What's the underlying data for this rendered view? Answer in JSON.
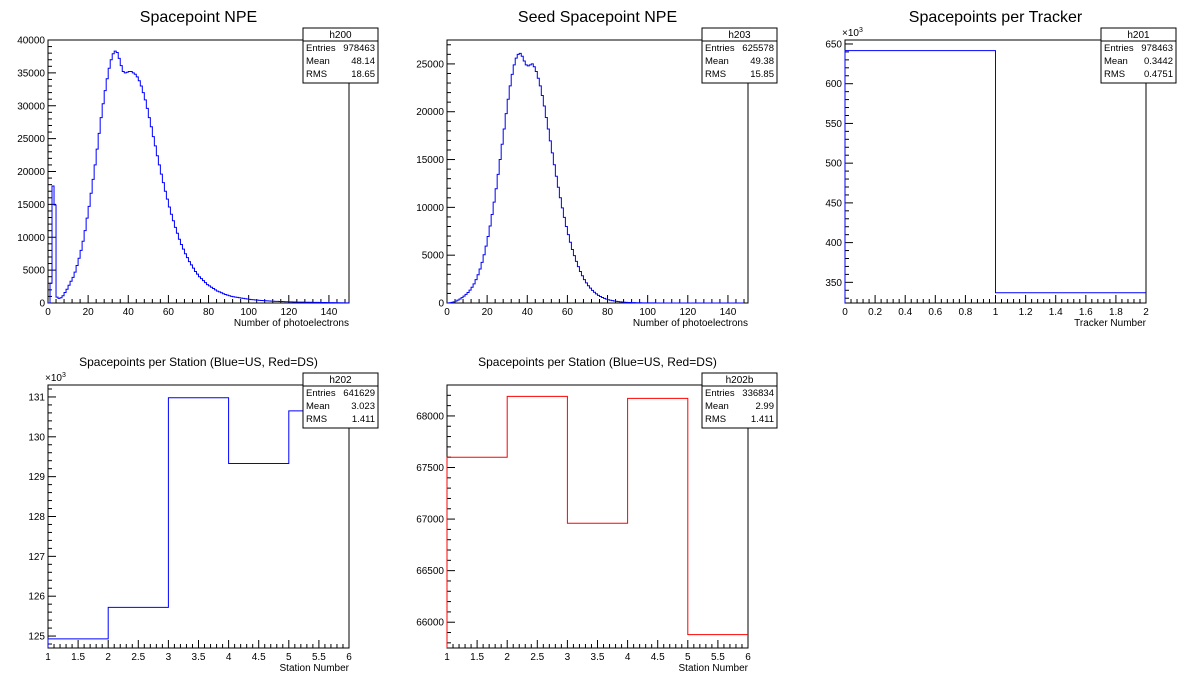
{
  "chart_data": [
    {
      "id": "h200",
      "type": "histogram",
      "title": "Spacepoint NPE",
      "xlabel": "Number of photoelectrons",
      "ylabel": "",
      "xlim": [
        0,
        150
      ],
      "ylim": [
        0,
        40000
      ],
      "xticks": [
        "0",
        "20",
        "40",
        "60",
        "80",
        "100",
        "120",
        "140"
      ],
      "yticks": [
        "0",
        "5000",
        "10000",
        "15000",
        "20000",
        "25000",
        "30000",
        "35000",
        "40000"
      ],
      "yexp": "",
      "color": "#0000ff",
      "bin_width": 1,
      "values": [
        0,
        3000,
        17800,
        14900,
        900,
        700,
        800,
        1100,
        1600,
        2100,
        2700,
        3300,
        3900,
        4700,
        5700,
        6800,
        8000,
        9400,
        11000,
        12900,
        14700,
        16700,
        18800,
        21000,
        23400,
        25800,
        28200,
        30300,
        32300,
        34100,
        35700,
        37000,
        37900,
        38300,
        38100,
        37200,
        36100,
        35200,
        35000,
        35100,
        35200,
        35200,
        35000,
        34800,
        34400,
        33800,
        33000,
        32000,
        30900,
        29600,
        28200,
        26800,
        25300,
        23900,
        22400,
        21000,
        19600,
        18300,
        17000,
        15800,
        14600,
        13500,
        12500,
        11500,
        10600,
        9700,
        8900,
        8200,
        7500,
        6900,
        6300,
        5800,
        5300,
        4800,
        4400,
        4000,
        3700,
        3400,
        3100,
        2800,
        2600,
        2400,
        2200,
        2000,
        1800,
        1700,
        1550,
        1400,
        1300,
        1200,
        1100,
        1000,
        950,
        900,
        850,
        800,
        750,
        700,
        650,
        600,
        560,
        520,
        490,
        460,
        430,
        400,
        380,
        360,
        340,
        320,
        300,
        280,
        260,
        250,
        240,
        230,
        220,
        210,
        200,
        190,
        180,
        170,
        160,
        150,
        140,
        135,
        130,
        125,
        120,
        115,
        110,
        105,
        100,
        95,
        90,
        85,
        80,
        75,
        70,
        65,
        60,
        55,
        50,
        45,
        40,
        35,
        30,
        28,
        26,
        24
      ],
      "stats": {
        "name": "h200",
        "entries": "978463",
        "mean": "48.14",
        "rms": "18.65"
      }
    },
    {
      "id": "h203",
      "type": "histogram",
      "title": "Seed Spacepoint NPE",
      "xlabel": "Number of photoelectrons",
      "ylabel": "",
      "xlim": [
        0,
        150
      ],
      "ylim": [
        0,
        27500
      ],
      "xticks": [
        "0",
        "20",
        "40",
        "60",
        "80",
        "100",
        "120",
        "140"
      ],
      "yticks": [
        "0",
        "5000",
        "10000",
        "15000",
        "20000",
        "25000"
      ],
      "yexp": "",
      "color": "#0000ff",
      "bin_width": 1,
      "values": [
        0,
        20,
        60,
        120,
        200,
        300,
        420,
        560,
        720,
        900,
        1100,
        1350,
        1650,
        2000,
        2450,
        2950,
        3550,
        4250,
        5050,
        5950,
        6950,
        8050,
        9250,
        10550,
        11950,
        13450,
        15000,
        16600,
        18200,
        19800,
        21300,
        22700,
        23900,
        24900,
        25600,
        26000,
        26100,
        25800,
        25300,
        24900,
        24800,
        24900,
        25000,
        24700,
        24200,
        23500,
        22700,
        21700,
        20600,
        19400,
        18200,
        16950,
        15700,
        14450,
        13250,
        12100,
        11000,
        9950,
        8950,
        8000,
        7150,
        6350,
        5600,
        4950,
        4350,
        3800,
        3300,
        2850,
        2450,
        2100,
        1800,
        1550,
        1320,
        1120,
        950,
        800,
        680,
        570,
        480,
        400,
        340,
        290,
        245,
        205,
        170,
        140,
        118,
        100,
        84,
        70,
        58,
        48,
        40,
        34,
        29,
        25,
        21,
        18,
        15,
        13,
        11,
        9,
        8,
        7,
        6,
        5,
        4,
        4,
        3,
        3,
        2,
        2,
        2,
        1,
        1,
        1,
        1,
        1,
        0,
        0,
        0,
        0,
        0,
        0,
        0,
        0,
        0,
        0,
        0,
        0,
        0,
        0,
        0,
        0,
        0,
        0,
        0,
        0,
        0,
        0,
        0,
        0,
        0,
        0,
        0,
        0,
        0,
        0
      ],
      "stats": {
        "name": "h203",
        "entries": "625578",
        "mean": "49.38",
        "rms": "15.85"
      }
    },
    {
      "id": "h201",
      "type": "histogram",
      "title": "Spacepoints per Tracker",
      "xlabel": "Tracker Number",
      "ylabel": "",
      "xlim": [
        0,
        2
      ],
      "ylim": [
        324,
        655
      ],
      "xticks": [
        "0",
        "0.2",
        "0.4",
        "0.6",
        "0.8",
        "1",
        "1.2",
        "1.4",
        "1.6",
        "1.8",
        "2"
      ],
      "yticks": [
        "350",
        "400",
        "450",
        "500",
        "550",
        "600",
        "650"
      ],
      "yexp": "×10",
      "yexp_sup": "3",
      "color": "#0000ff",
      "bin_width": 1,
      "values": [
        641.629,
        336.834
      ],
      "stats": {
        "name": "h201",
        "entries": "978463",
        "mean": "0.3442",
        "rms": "0.4751"
      }
    },
    {
      "id": "h202",
      "type": "histogram",
      "title": "Spacepoints per Station (Blue=US, Red=DS)",
      "xlabel": "Station Number",
      "ylabel": "",
      "xlim": [
        1,
        6
      ],
      "ylim": [
        124.7,
        131.3
      ],
      "xticks": [
        "1",
        "1.5",
        "2",
        "2.5",
        "3",
        "3.5",
        "4",
        "4.5",
        "5",
        "5.5",
        "6"
      ],
      "yticks": [
        "125",
        "126",
        "127",
        "128",
        "129",
        "130",
        "131"
      ],
      "yexp": "×10",
      "yexp_sup": "3",
      "color": "#0000ff",
      "bin_width": 1,
      "values": [
        124.93,
        125.72,
        130.98,
        129.33,
        130.65
      ],
      "stats": {
        "name": "h202",
        "entries": "641629",
        "mean": "3.023",
        "rms": "1.411"
      }
    },
    {
      "id": "h202b",
      "type": "histogram",
      "title": "Spacepoints per Station (Blue=US, Red=DS)",
      "xlabel": "Station Number",
      "ylabel": "",
      "xlim": [
        1,
        6
      ],
      "ylim": [
        65750,
        68300
      ],
      "xticks": [
        "1",
        "1.5",
        "2",
        "2.5",
        "3",
        "3.5",
        "4",
        "4.5",
        "5",
        "5.5",
        "6"
      ],
      "yticks": [
        "66000",
        "66500",
        "67000",
        "67500",
        "68000"
      ],
      "yexp": "",
      "color": "#ff0000",
      "bin_width": 1,
      "values": [
        67600,
        68190,
        66960,
        68170,
        65880
      ],
      "stats": {
        "name": "h202b",
        "entries": "336834",
        "mean": "2.99",
        "rms": "1.411"
      }
    }
  ],
  "stats_labels": {
    "entries": "Entries",
    "mean": "Mean",
    "rms": "RMS"
  }
}
